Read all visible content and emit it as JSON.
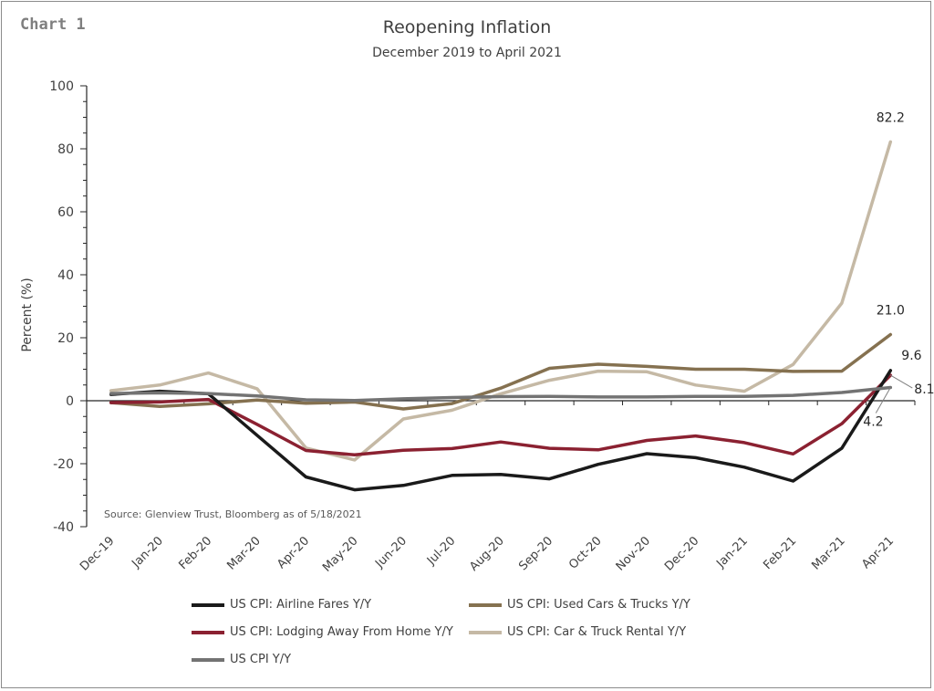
{
  "header": {
    "chart_label": "Chart 1",
    "title": "Reopening Inflation",
    "subtitle": "December 2019 to April 2021"
  },
  "footer": {
    "source": "Source: Glenview Trust, Bloomberg as of 5/18/2021"
  },
  "chart_data": {
    "type": "line",
    "title": "Reopening Inflation",
    "subtitle": "December 2019 to April 2021",
    "xlabel": "",
    "ylabel": "Percent (%)",
    "ylim": [
      -40,
      100
    ],
    "yticks": [
      -40,
      -20,
      0,
      20,
      40,
      60,
      80,
      100
    ],
    "grid": false,
    "legend_position": "bottom",
    "categories": [
      "Dec-19",
      "Jan-20",
      "Feb-20",
      "Mar-20",
      "Apr-20",
      "May-20",
      "Jun-20",
      "Jul-20",
      "Aug-20",
      "Sep-20",
      "Oct-20",
      "Nov-20",
      "Dec-20",
      "Jan-21",
      "Feb-21",
      "Mar-21",
      "Apr-21"
    ],
    "series": [
      {
        "name": "US CPI: Airline Fares Y/Y",
        "color": "#1a1a1a",
        "values": [
          2.0,
          3.0,
          2.2,
          -11.0,
          -24.2,
          -28.3,
          -26.9,
          -23.7,
          -23.4,
          -24.8,
          -20.2,
          -16.8,
          -18.1,
          -21.1,
          -25.5,
          -15.1,
          9.6
        ]
      },
      {
        "name": "US CPI: Used Cars & Trucks Y/Y",
        "color": "#857150",
        "values": [
          -0.6,
          -1.8,
          -1.0,
          0.2,
          -0.8,
          -0.4,
          -2.6,
          -0.9,
          4.0,
          10.3,
          11.6,
          10.9,
          10.0,
          10.0,
          9.3,
          9.4,
          21.0
        ]
      },
      {
        "name": "US CPI: Lodging Away From Home Y/Y",
        "color": "#8b2131",
        "values": [
          -0.6,
          -0.4,
          0.4,
          -7.5,
          -15.8,
          -17.2,
          -15.7,
          -15.2,
          -13.1,
          -15.1,
          -15.6,
          -12.6,
          -11.2,
          -13.3,
          -16.9,
          -7.3,
          8.1
        ]
      },
      {
        "name": "US CPI: Car & Truck Rental Y/Y",
        "color": "#c5b9a5",
        "values": [
          3.2,
          5.0,
          8.8,
          3.8,
          -15.0,
          -18.8,
          -5.8,
          -3.0,
          2.2,
          6.5,
          9.4,
          9.2,
          5.0,
          3.0,
          11.5,
          31.0,
          82.2
        ]
      },
      {
        "name": "US CPI Y/Y",
        "color": "#737373",
        "values": [
          2.3,
          2.5,
          2.3,
          1.5,
          0.3,
          0.1,
          0.6,
          1.0,
          1.3,
          1.4,
          1.2,
          1.2,
          1.4,
          1.4,
          1.7,
          2.6,
          4.2
        ]
      }
    ],
    "annotations": [
      {
        "text": "82.2",
        "series": "US CPI: Car & Truck Rental Y/Y"
      },
      {
        "text": "21.0",
        "series": "US CPI: Used Cars & Trucks Y/Y"
      },
      {
        "text": "9.6",
        "series": "US CPI: Airline Fares Y/Y"
      },
      {
        "text": "8.1",
        "series": "US CPI: Lodging Away From Home Y/Y"
      },
      {
        "text": "4.2",
        "series": "US CPI Y/Y"
      }
    ]
  }
}
